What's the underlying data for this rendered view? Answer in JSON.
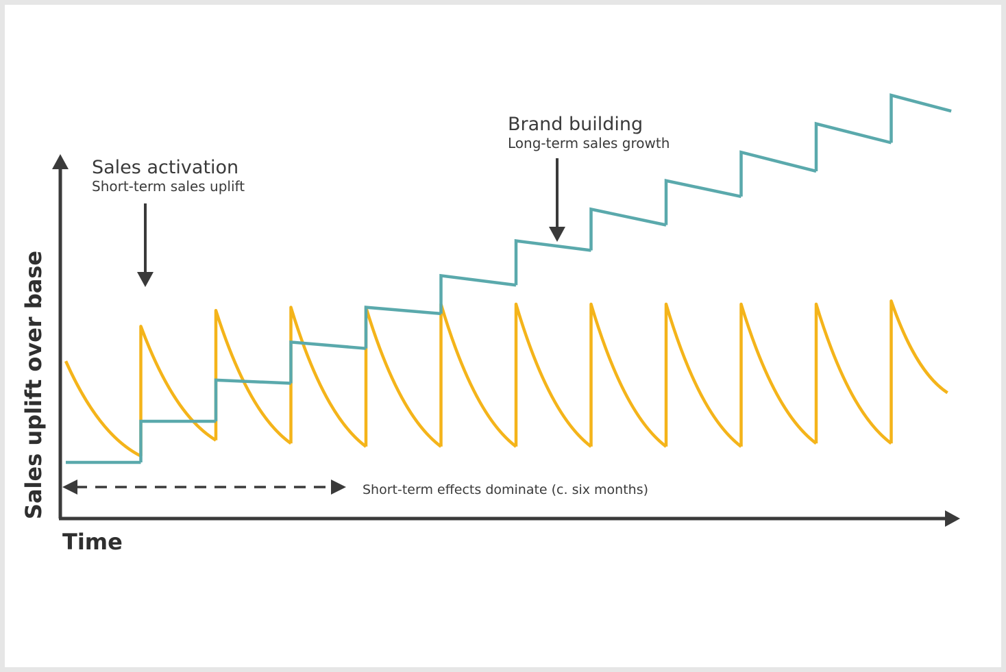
{
  "chart_data": {
    "type": "line",
    "title": "",
    "xlabel": "Time",
    "ylabel": "Sales uplift over base",
    "x_ticks": "none",
    "y_ticks": "none",
    "grid": false,
    "legend": "none",
    "ylim": [
      0,
      100
    ],
    "series": [
      {
        "name": "Sales activation",
        "color": "#f4b41a",
        "shape": "sawtooth decay",
        "pulses": [
          {
            "x_start": 0.0,
            "x_end": 1.0,
            "peak": 32,
            "trough": 2
          },
          {
            "x_start": 1.0,
            "x_end": 2.0,
            "peak": 43,
            "trough": 7
          },
          {
            "x_start": 2.0,
            "x_end": 3.0,
            "peak": 48,
            "trough": 6
          },
          {
            "x_start": 3.0,
            "x_end": 4.0,
            "peak": 49,
            "trough": 5
          },
          {
            "x_start": 4.0,
            "x_end": 5.0,
            "peak": 49,
            "trough": 5
          },
          {
            "x_start": 5.0,
            "x_end": 6.0,
            "peak": 50,
            "trough": 5
          },
          {
            "x_start": 6.0,
            "x_end": 7.0,
            "peak": 50,
            "trough": 5
          },
          {
            "x_start": 7.0,
            "x_end": 8.0,
            "peak": 50,
            "trough": 5
          },
          {
            "x_start": 8.0,
            "x_end": 9.0,
            "peak": 50,
            "trough": 5
          },
          {
            "x_start": 9.0,
            "x_end": 10.0,
            "peak": 50,
            "trough": 6
          },
          {
            "x_start": 10.0,
            "x_end": 11.0,
            "peak": 50,
            "trough": 6
          },
          {
            "x_start": 11.0,
            "x_end": 11.75,
            "peak": 51,
            "trough": 22
          }
        ]
      },
      {
        "name": "Brand building",
        "color": "#5aa9ac",
        "shape": "stepped growth",
        "steps": [
          {
            "x_start": 0.0,
            "x_end": 1.0,
            "start": 0,
            "end": 0
          },
          {
            "x_start": 1.0,
            "x_end": 2.0,
            "start": 13,
            "end": 13
          },
          {
            "x_start": 2.0,
            "x_end": 3.0,
            "start": 26,
            "end": 25
          },
          {
            "x_start": 3.0,
            "x_end": 4.0,
            "start": 38,
            "end": 36
          },
          {
            "x_start": 4.0,
            "x_end": 5.0,
            "start": 49,
            "end": 47
          },
          {
            "x_start": 5.0,
            "x_end": 6.0,
            "start": 59,
            "end": 56
          },
          {
            "x_start": 6.0,
            "x_end": 7.0,
            "start": 70,
            "end": 67
          },
          {
            "x_start": 7.0,
            "x_end": 8.0,
            "start": 80,
            "end": 75
          },
          {
            "x_start": 8.0,
            "x_end": 9.0,
            "start": 89,
            "end": 84
          },
          {
            "x_start": 9.0,
            "x_end": 10.0,
            "start": 98,
            "end": 92
          },
          {
            "x_start": 10.0,
            "x_end": 11.0,
            "start": 107,
            "end": 101
          },
          {
            "x_start": 11.0,
            "x_end": 11.8,
            "start": 116,
            "end": 111
          }
        ]
      }
    ],
    "annotations": [
      {
        "title": "Sales activation",
        "subtitle": "Short-term sales uplift"
      },
      {
        "title": "Brand building",
        "subtitle": "Long-term sales growth"
      }
    ],
    "span_note": "Short-term effects dominate (c. six months)"
  },
  "colors": {
    "activation": "#f4b41a",
    "brand": "#5aa9ac",
    "axis": "#3a3a3a"
  }
}
